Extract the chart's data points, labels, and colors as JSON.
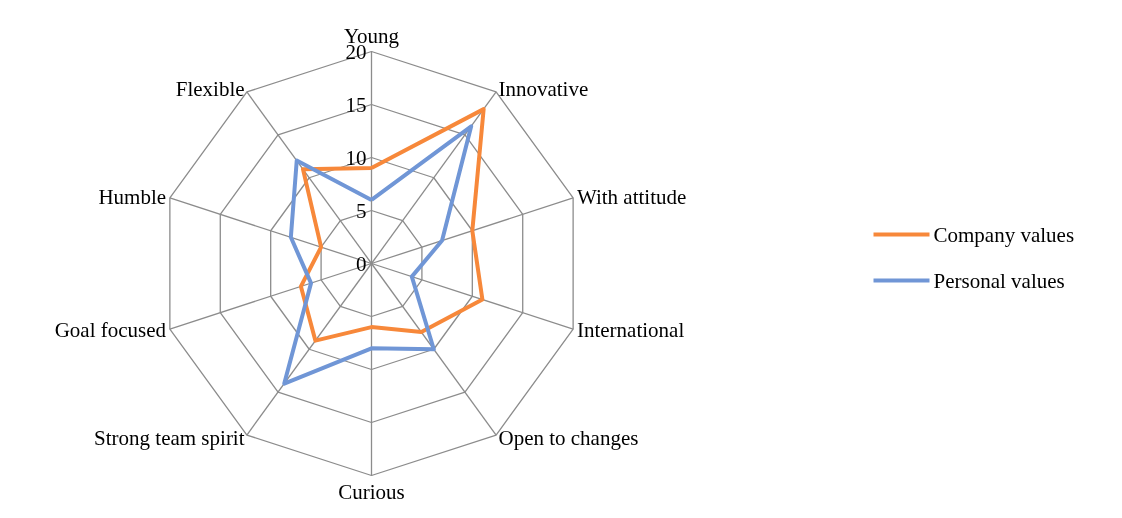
{
  "chart_data": {
    "type": "radar",
    "categories": [
      "Young",
      "Innovative",
      "With attitude",
      "International",
      "Open to changes",
      "Curious",
      "Strong team spirit",
      "Goal focused",
      "Humble",
      "Flexible"
    ],
    "series": [
      {
        "name": "Company values",
        "color": "#f7883a",
        "values": [
          9,
          18,
          10,
          11,
          8,
          6,
          9,
          7,
          5,
          11
        ]
      },
      {
        "name": "Personal values",
        "color": "#7096d6",
        "values": [
          6,
          16,
          7,
          4,
          10,
          8,
          14,
          6,
          8,
          12
        ]
      }
    ],
    "ylim": [
      0,
      20
    ],
    "yticks": [
      0,
      5,
      10,
      15,
      20
    ],
    "grid": true,
    "legend": "right",
    "line_style": "solid",
    "marker": "none"
  }
}
